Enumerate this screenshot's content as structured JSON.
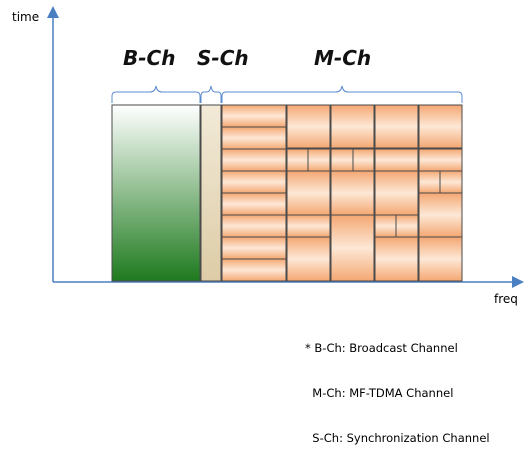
{
  "axes": {
    "y_label": "time",
    "x_label": "freq"
  },
  "channels": {
    "b": "B-Ch",
    "s": "S-Ch",
    "m": "M-Ch"
  },
  "legend": [
    "* B-Ch: Broadcast Channel",
    "  M-Ch: MF-TDMA Channel",
    "  S-Ch: Synchronization Channel"
  ],
  "colors": {
    "axis": "#4a7fc1",
    "grid_line": "#4a4a4a",
    "b_channel_top": "#ffffff",
    "b_channel_bottom": "#1e7a1e",
    "s_channel": "#e8dcc0",
    "m_slot_edge": "#f4a772",
    "m_slot_center": "#fde3cc"
  }
}
